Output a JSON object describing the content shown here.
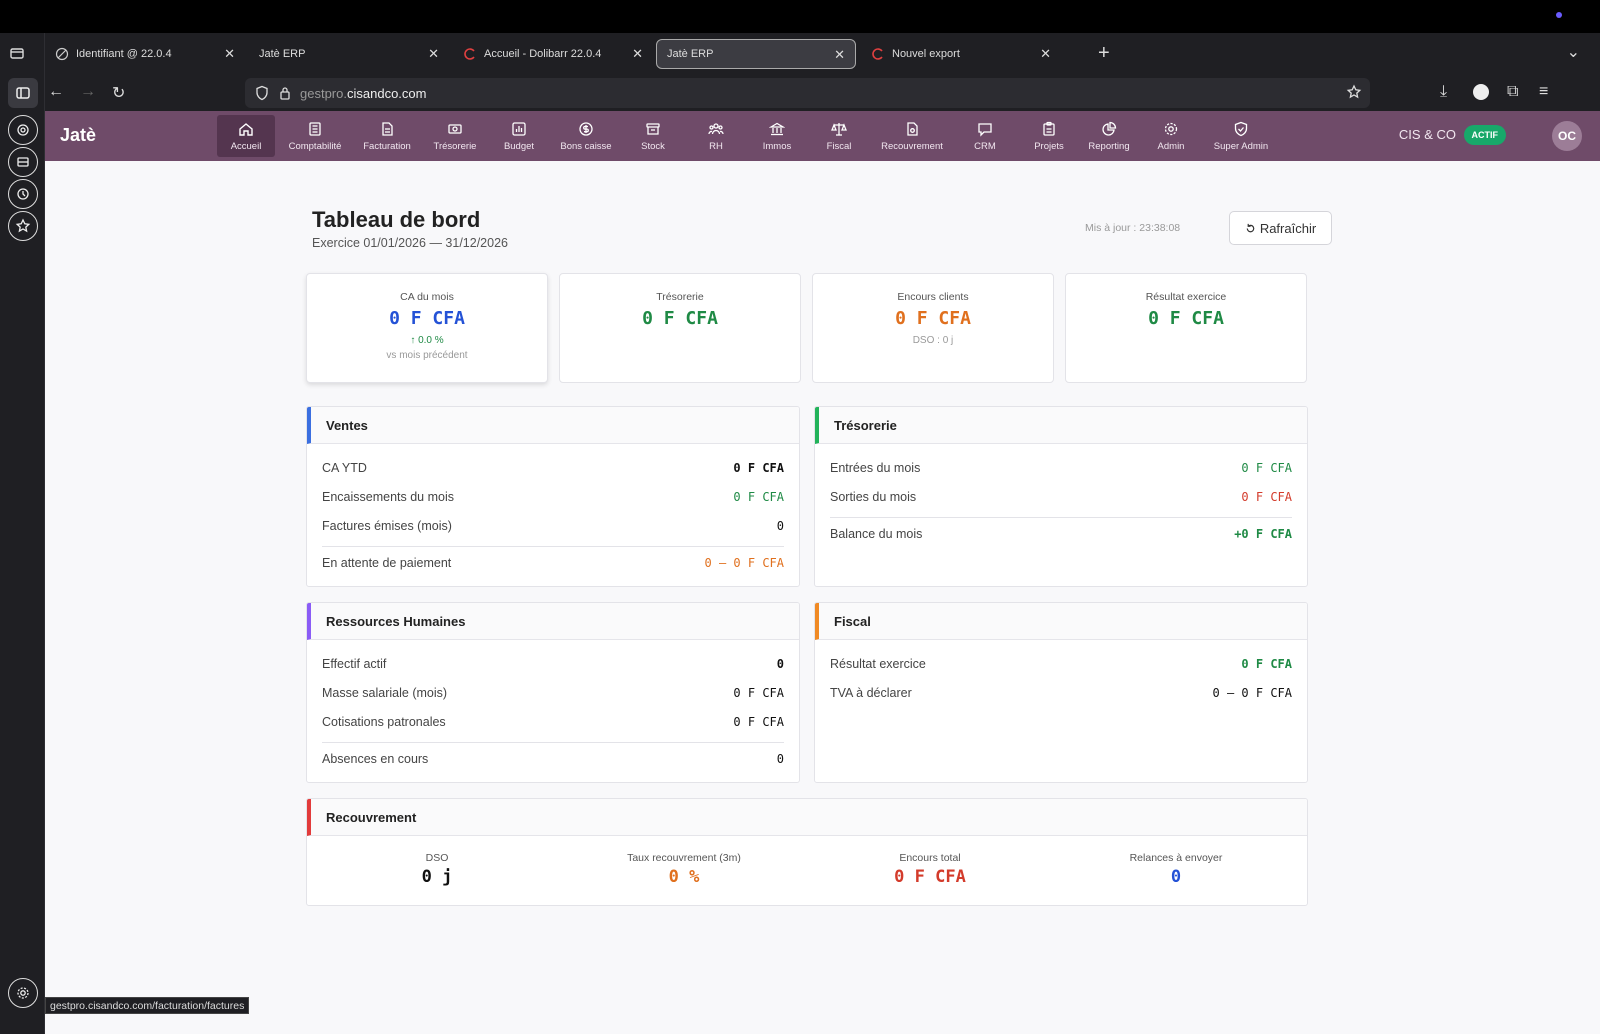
{
  "browser": {
    "tabs": [
      {
        "title": "Identifiant @ 22.0.4",
        "active": false
      },
      {
        "title": "Jatè ERP",
        "active": false
      },
      {
        "title": "Accueil - Dolibarr 22.0.4",
        "active": false
      },
      {
        "title": "Jatè ERP",
        "active": true
      },
      {
        "title": "Nouvel export",
        "active": false
      }
    ],
    "url_domain_prefix": "gestpro.",
    "url_domain": "cisandco.com",
    "status_url": "gestpro.cisandco.com/facturation/factures"
  },
  "app": {
    "brand": "Jatè",
    "nav": [
      {
        "label": "Accueil",
        "icon": "home-icon"
      },
      {
        "label": "Comptabilité",
        "icon": "ledger-icon"
      },
      {
        "label": "Facturation",
        "icon": "invoice-icon"
      },
      {
        "label": "Trésorerie",
        "icon": "cash-icon"
      },
      {
        "label": "Budget",
        "icon": "chart-icon"
      },
      {
        "label": "Bons caisse",
        "icon": "dollar-icon"
      },
      {
        "label": "Stock",
        "icon": "box-icon"
      },
      {
        "label": "RH",
        "icon": "people-icon"
      },
      {
        "label": "Immos",
        "icon": "building-icon"
      },
      {
        "label": "Fiscal",
        "icon": "scale-icon"
      },
      {
        "label": "Recouvrement",
        "icon": "document-icon"
      },
      {
        "label": "CRM",
        "icon": "chat-icon"
      },
      {
        "label": "Projets",
        "icon": "clipboard-icon"
      },
      {
        "label": "Reporting",
        "icon": "pie-icon"
      },
      {
        "label": "Admin",
        "icon": "gear-icon"
      },
      {
        "label": "Super Admin",
        "icon": "shield-check-icon"
      }
    ],
    "company": "CIS & CO",
    "status_badge": "ACTIF",
    "avatar": "OC"
  },
  "dashboard": {
    "title": "Tableau de bord",
    "subtitle": "Exercice 01/01/2026 — 31/12/2026",
    "updated": "Mis à jour : 23:38:08",
    "refresh_label": "Rafraîchir",
    "kpis": [
      {
        "label": "CA du mois",
        "value": "0 F CFA",
        "delta": "↑ 0.0 %",
        "note": "vs mois précédent"
      },
      {
        "label": "Trésorerie",
        "value": "0 F CFA"
      },
      {
        "label": "Encours clients",
        "value": "0 F CFA",
        "note": "DSO : 0 j"
      },
      {
        "label": "Résultat exercice",
        "value": "0 F CFA"
      }
    ],
    "ventes": {
      "title": "Ventes",
      "rows": [
        {
          "label": "CA YTD",
          "value": "0 F CFA"
        },
        {
          "label": "Encaissements du mois",
          "value": "0 F CFA"
        },
        {
          "label": "Factures émises (mois)",
          "value": "0"
        },
        {
          "label": "En attente de paiement",
          "value": "0 — 0 F CFA"
        }
      ]
    },
    "tresorerie": {
      "title": "Trésorerie",
      "rows": [
        {
          "label": "Entrées du mois",
          "value": "0 F CFA"
        },
        {
          "label": "Sorties du mois",
          "value": "0 F CFA"
        },
        {
          "label": "Balance du mois",
          "value": "+0 F CFA"
        }
      ]
    },
    "rh": {
      "title": "Ressources Humaines",
      "rows": [
        {
          "label": "Effectif actif",
          "value": "0"
        },
        {
          "label": "Masse salariale (mois)",
          "value": "0 F CFA"
        },
        {
          "label": "Cotisations patronales",
          "value": "0 F CFA"
        },
        {
          "label": "Absences en cours",
          "value": "0"
        }
      ]
    },
    "fiscal": {
      "title": "Fiscal",
      "rows": [
        {
          "label": "Résultat exercice",
          "value": "0 F CFA"
        },
        {
          "label": "TVA à déclarer",
          "value": "0 — 0 F CFA"
        }
      ]
    },
    "recouvrement": {
      "title": "Recouvrement",
      "items": [
        {
          "label": "DSO",
          "value": "0 j"
        },
        {
          "label": "Taux recouvrement (3m)",
          "value": "0 %"
        },
        {
          "label": "Encours total",
          "value": "0 F CFA"
        },
        {
          "label": "Relances à envoyer",
          "value": "0"
        }
      ]
    }
  },
  "colors": {
    "header": "#6f4b69",
    "ventes_accent": "#3b6fe0",
    "tresorerie_accent": "#22b35a",
    "rh_accent": "#8b5cf6",
    "fiscal_accent": "#f08a24",
    "recouvrement_accent": "#e23b3b"
  }
}
